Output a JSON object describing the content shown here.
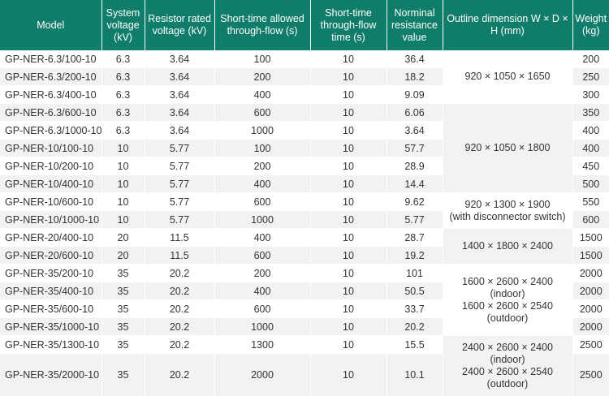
{
  "headers": [
    "Model",
    "System voltage (kV)",
    "Resistor rated voltage (kV)",
    "Short-time allowed through-flow (s)",
    "Short-time through-flow time (s)",
    "Norminal resistance value",
    "Outline dimension W × D × H (mm)",
    "Weight (kg)"
  ],
  "rows": [
    {
      "model": "GP-NER-6.3/100-10",
      "sys_v": "6.3",
      "res_v": "3.64",
      "flow": "100",
      "time": "10",
      "res": "36.4",
      "weight": "200"
    },
    {
      "model": "GP-NER-6.3/200-10",
      "sys_v": "6.3",
      "res_v": "3.64",
      "flow": "200",
      "time": "10",
      "res": "18.2",
      "weight": "250"
    },
    {
      "model": "GP-NER-6.3/400-10",
      "sys_v": "6.3",
      "res_v": "3.64",
      "flow": "400",
      "time": "10",
      "res": "9.09",
      "weight": "300"
    },
    {
      "model": "GP-NER-6.3/600-10",
      "sys_v": "6.3",
      "res_v": "3.64",
      "flow": "600",
      "time": "10",
      "res": "6.06",
      "weight": "350"
    },
    {
      "model": "GP-NER-6.3/1000-10",
      "sys_v": "6.3",
      "res_v": "3.64",
      "flow": "1000",
      "time": "10",
      "res": "3.64",
      "weight": "400"
    },
    {
      "model": "GP-NER-10/100-10",
      "sys_v": "10",
      "res_v": "5.77",
      "flow": "100",
      "time": "10",
      "res": "57.7",
      "weight": "400"
    },
    {
      "model": "GP-NER-10/200-10",
      "sys_v": "10",
      "res_v": "5.77",
      "flow": "200",
      "time": "10",
      "res": "28.9",
      "weight": "450"
    },
    {
      "model": "GP-NER-10/400-10",
      "sys_v": "10",
      "res_v": "5.77",
      "flow": "400",
      "time": "10",
      "res": "14.4",
      "weight": "500"
    },
    {
      "model": "GP-NER-10/600-10",
      "sys_v": "10",
      "res_v": "5.77",
      "flow": "600",
      "time": "10",
      "res": "9.62",
      "weight": "550"
    },
    {
      "model": "GP-NER-10/1000-10",
      "sys_v": "10",
      "res_v": "5.77",
      "flow": "1000",
      "time": "10",
      "res": "5.77",
      "weight": "600"
    },
    {
      "model": "GP-NER-20/400-10",
      "sys_v": "20",
      "res_v": "11.5",
      "flow": "400",
      "time": "10",
      "res": "28.7",
      "weight": "1500"
    },
    {
      "model": "GP-NER-20/600-10",
      "sys_v": "20",
      "res_v": "11.5",
      "flow": "600",
      "time": "10",
      "res": "19.2",
      "weight": "1500"
    },
    {
      "model": "GP-NER-35/200-10",
      "sys_v": "35",
      "res_v": "20.2",
      "flow": "200",
      "time": "10",
      "res": "101",
      "weight": "2000"
    },
    {
      "model": "GP-NER-35/400-10",
      "sys_v": "35",
      "res_v": "20.2",
      "flow": "400",
      "time": "10",
      "res": "50.5",
      "weight": "2000"
    },
    {
      "model": "GP-NER-35/600-10",
      "sys_v": "35",
      "res_v": "20.2",
      "flow": "600",
      "time": "10",
      "res": "33.7",
      "weight": "2000"
    },
    {
      "model": "GP-NER-35/1000-10",
      "sys_v": "35",
      "res_v": "20.2",
      "flow": "1000",
      "time": "10",
      "res": "20.2",
      "weight": "2000"
    },
    {
      "model": "GP-NER-35/1300-10",
      "sys_v": "35",
      "res_v": "20.2",
      "flow": "1300",
      "time": "10",
      "res": "15.5",
      "weight": "2500"
    },
    {
      "model": "GP-NER-35/2000-10",
      "sys_v": "35",
      "res_v": "20.2",
      "flow": "2000",
      "time": "10",
      "res": "10.1",
      "weight": "2500"
    }
  ],
  "dimension_groups": [
    {
      "lines": [
        "920 × 1050 × 1650"
      ]
    },
    {
      "lines": [
        "920 × 1050 × 1800"
      ]
    },
    {
      "lines": [
        "920 × 1300 × 1900",
        "(with disconnector switch)"
      ]
    },
    {
      "lines": [
        "1400 × 1800 × 2400"
      ]
    },
    {
      "lines": [
        "1600 × 2600 × 2400",
        "(indoor)",
        "1600 × 2600 × 2540",
        "(outdoor)"
      ]
    },
    {
      "lines": [
        "2400 × 2600 × 2400",
        "(indoor)",
        "2400 × 2600 × 2540",
        "(outdoor)"
      ]
    }
  ],
  "colors": {
    "header_bg": "#107c6a",
    "header_text": "#ffffff",
    "row_white": "#ffffff",
    "row_gray": "#f2f2f2",
    "body_text": "#333333"
  }
}
